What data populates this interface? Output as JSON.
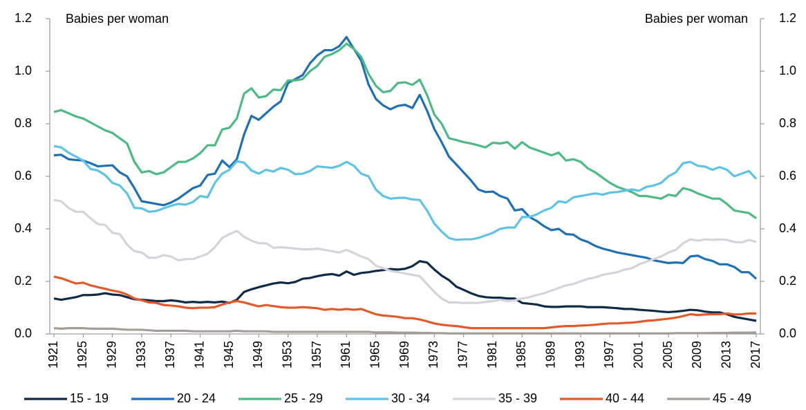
{
  "chart_data": {
    "type": "line",
    "y_label": "Babies per woman",
    "y2_label": "Babies per woman",
    "x": [
      1921,
      1922,
      1923,
      1924,
      1925,
      1926,
      1927,
      1928,
      1929,
      1930,
      1931,
      1932,
      1933,
      1934,
      1935,
      1936,
      1937,
      1938,
      1939,
      1940,
      1941,
      1942,
      1943,
      1944,
      1945,
      1946,
      1947,
      1948,
      1949,
      1950,
      1951,
      1952,
      1953,
      1954,
      1955,
      1956,
      1957,
      1958,
      1959,
      1960,
      1961,
      1962,
      1963,
      1964,
      1965,
      1966,
      1967,
      1968,
      1969,
      1970,
      1971,
      1972,
      1973,
      1974,
      1975,
      1976,
      1977,
      1978,
      1979,
      1980,
      1981,
      1982,
      1983,
      1984,
      1985,
      1986,
      1987,
      1988,
      1989,
      1990,
      1991,
      1992,
      1993,
      1994,
      1995,
      1996,
      1997,
      1998,
      1999,
      2000,
      2001,
      2002,
      2003,
      2004,
      2005,
      2006,
      2007,
      2008,
      2009,
      2010,
      2011,
      2012,
      2013,
      2014,
      2015,
      2016,
      2017
    ],
    "xlim": [
      1921,
      2017
    ],
    "xticks": [
      1921,
      1925,
      1929,
      1933,
      1937,
      1941,
      1945,
      1949,
      1953,
      1957,
      1961,
      1965,
      1969,
      1973,
      1977,
      1981,
      1985,
      1989,
      1993,
      1997,
      2001,
      2005,
      2009,
      2013,
      2017
    ],
    "ylim": [
      0,
      1.2
    ],
    "yticks": [
      {
        "value": 0,
        "label": "0.0"
      },
      0.2,
      0.4,
      0.6,
      0.8,
      {
        "value": 1,
        "label": "1.0"
      },
      1.2
    ],
    "y2lim": [
      0,
      1.2
    ],
    "y2ticks": [
      {
        "value": 0,
        "label": "0.0"
      },
      0.2,
      0.4,
      0.6,
      0.8,
      {
        "value": 1,
        "label": "1.0"
      },
      1.2
    ],
    "legend": "bottom",
    "series": [
      {
        "name": "15 - 19",
        "color": "#0e2a47",
        "values": [
          0.135,
          0.13,
          0.135,
          0.14,
          0.148,
          0.148,
          0.15,
          0.155,
          0.15,
          0.148,
          0.14,
          0.132,
          0.13,
          0.128,
          0.125,
          0.125,
          0.128,
          0.125,
          0.12,
          0.122,
          0.12,
          0.122,
          0.12,
          0.123,
          0.118,
          0.13,
          0.16,
          0.17,
          0.178,
          0.185,
          0.192,
          0.196,
          0.193,
          0.198,
          0.21,
          0.213,
          0.22,
          0.225,
          0.228,
          0.222,
          0.238,
          0.225,
          0.232,
          0.235,
          0.24,
          0.243,
          0.247,
          0.245,
          0.248,
          0.258,
          0.277,
          0.272,
          0.245,
          0.222,
          0.205,
          0.18,
          0.168,
          0.155,
          0.145,
          0.14,
          0.138,
          0.138,
          0.135,
          0.135,
          0.118,
          0.115,
          0.112,
          0.105,
          0.103,
          0.103,
          0.105,
          0.105,
          0.105,
          0.102,
          0.102,
          0.102,
          0.1,
          0.098,
          0.095,
          0.095,
          0.092,
          0.09,
          0.088,
          0.085,
          0.083,
          0.085,
          0.088,
          0.092,
          0.09,
          0.085,
          0.082,
          0.082,
          0.075,
          0.065,
          0.06,
          0.055,
          0.05
        ]
      },
      {
        "name": "20 - 24",
        "color": "#1f6fb4",
        "values": [
          0.68,
          0.682,
          0.665,
          0.662,
          0.66,
          0.65,
          0.638,
          0.64,
          0.642,
          0.615,
          0.6,
          0.555,
          0.505,
          0.5,
          0.495,
          0.49,
          0.5,
          0.515,
          0.535,
          0.555,
          0.565,
          0.605,
          0.61,
          0.66,
          0.635,
          0.665,
          0.76,
          0.83,
          0.815,
          0.84,
          0.865,
          0.885,
          0.955,
          0.97,
          0.985,
          1.03,
          1.06,
          1.08,
          1.08,
          1.095,
          1.13,
          1.085,
          1.04,
          0.95,
          0.895,
          0.87,
          0.855,
          0.868,
          0.872,
          0.86,
          0.91,
          0.85,
          0.78,
          0.73,
          0.675,
          0.645,
          0.615,
          0.585,
          0.55,
          0.54,
          0.542,
          0.525,
          0.515,
          0.47,
          0.475,
          0.445,
          0.43,
          0.41,
          0.395,
          0.4,
          0.38,
          0.378,
          0.36,
          0.35,
          0.335,
          0.325,
          0.318,
          0.31,
          0.305,
          0.3,
          0.295,
          0.29,
          0.28,
          0.275,
          0.27,
          0.272,
          0.27,
          0.295,
          0.298,
          0.285,
          0.278,
          0.265,
          0.265,
          0.255,
          0.235,
          0.235,
          0.21
        ]
      },
      {
        "name": "25 - 29",
        "color": "#4dba85",
        "values": [
          0.845,
          0.852,
          0.84,
          0.828,
          0.82,
          0.805,
          0.79,
          0.775,
          0.765,
          0.745,
          0.725,
          0.655,
          0.615,
          0.62,
          0.608,
          0.615,
          0.635,
          0.655,
          0.655,
          0.668,
          0.688,
          0.718,
          0.718,
          0.778,
          0.785,
          0.82,
          0.915,
          0.935,
          0.9,
          0.905,
          0.93,
          0.928,
          0.965,
          0.965,
          0.97,
          1.0,
          1.02,
          1.055,
          1.065,
          1.08,
          1.105,
          1.085,
          1.055,
          0.99,
          0.945,
          0.92,
          0.925,
          0.955,
          0.958,
          0.948,
          0.968,
          0.91,
          0.835,
          0.8,
          0.745,
          0.738,
          0.73,
          0.725,
          0.718,
          0.71,
          0.728,
          0.725,
          0.73,
          0.705,
          0.73,
          0.71,
          0.7,
          0.69,
          0.68,
          0.69,
          0.66,
          0.665,
          0.655,
          0.63,
          0.615,
          0.595,
          0.575,
          0.56,
          0.55,
          0.54,
          0.525,
          0.525,
          0.52,
          0.515,
          0.53,
          0.525,
          0.555,
          0.548,
          0.535,
          0.525,
          0.515,
          0.515,
          0.495,
          0.47,
          0.465,
          0.46,
          0.44
        ]
      },
      {
        "name": "30 - 34",
        "color": "#5ec3e2",
        "values": [
          0.715,
          0.71,
          0.69,
          0.675,
          0.66,
          0.628,
          0.622,
          0.605,
          0.575,
          0.565,
          0.535,
          0.48,
          0.478,
          0.465,
          0.468,
          0.478,
          0.488,
          0.495,
          0.492,
          0.502,
          0.525,
          0.52,
          0.575,
          0.61,
          0.625,
          0.657,
          0.652,
          0.622,
          0.61,
          0.625,
          0.618,
          0.632,
          0.625,
          0.608,
          0.61,
          0.62,
          0.638,
          0.635,
          0.632,
          0.64,
          0.655,
          0.64,
          0.61,
          0.6,
          0.55,
          0.525,
          0.515,
          0.518,
          0.518,
          0.512,
          0.51,
          0.47,
          0.42,
          0.39,
          0.365,
          0.358,
          0.36,
          0.36,
          0.365,
          0.375,
          0.385,
          0.4,
          0.405,
          0.405,
          0.445,
          0.445,
          0.455,
          0.47,
          0.48,
          0.505,
          0.5,
          0.52,
          0.525,
          0.53,
          0.535,
          0.53,
          0.538,
          0.54,
          0.545,
          0.55,
          0.545,
          0.56,
          0.565,
          0.575,
          0.6,
          0.615,
          0.65,
          0.655,
          0.64,
          0.637,
          0.625,
          0.635,
          0.625,
          0.6,
          0.61,
          0.62,
          0.59
        ]
      },
      {
        "name": "35 - 39",
        "color": "#d4d3dc",
        "values": [
          0.51,
          0.505,
          0.48,
          0.465,
          0.465,
          0.44,
          0.418,
          0.415,
          0.385,
          0.38,
          0.34,
          0.315,
          0.31,
          0.29,
          0.29,
          0.3,
          0.295,
          0.28,
          0.285,
          0.285,
          0.295,
          0.305,
          0.33,
          0.365,
          0.38,
          0.392,
          0.37,
          0.355,
          0.345,
          0.345,
          0.328,
          0.33,
          0.328,
          0.325,
          0.322,
          0.322,
          0.325,
          0.32,
          0.315,
          0.31,
          0.32,
          0.308,
          0.295,
          0.285,
          0.26,
          0.25,
          0.24,
          0.235,
          0.23,
          0.225,
          0.22,
          0.19,
          0.16,
          0.135,
          0.12,
          0.12,
          0.118,
          0.118,
          0.118,
          0.122,
          0.125,
          0.13,
          0.125,
          0.128,
          0.135,
          0.14,
          0.148,
          0.155,
          0.165,
          0.175,
          0.185,
          0.19,
          0.2,
          0.21,
          0.215,
          0.225,
          0.23,
          0.235,
          0.245,
          0.25,
          0.265,
          0.275,
          0.285,
          0.295,
          0.31,
          0.32,
          0.345,
          0.36,
          0.355,
          0.36,
          0.358,
          0.36,
          0.358,
          0.35,
          0.348,
          0.358,
          0.35
        ]
      },
      {
        "name": "40 - 44",
        "color": "#e05a2b",
        "values": [
          0.218,
          0.212,
          0.202,
          0.192,
          0.195,
          0.185,
          0.178,
          0.172,
          0.165,
          0.16,
          0.15,
          0.135,
          0.128,
          0.12,
          0.118,
          0.11,
          0.108,
          0.105,
          0.1,
          0.098,
          0.1,
          0.1,
          0.102,
          0.112,
          0.12,
          0.125,
          0.12,
          0.112,
          0.105,
          0.11,
          0.106,
          0.102,
          0.1,
          0.1,
          0.102,
          0.1,
          0.098,
          0.092,
          0.095,
          0.092,
          0.095,
          0.092,
          0.095,
          0.085,
          0.075,
          0.07,
          0.068,
          0.065,
          0.06,
          0.06,
          0.055,
          0.048,
          0.04,
          0.035,
          0.032,
          0.03,
          0.026,
          0.022,
          0.022,
          0.022,
          0.022,
          0.022,
          0.022,
          0.022,
          0.022,
          0.022,
          0.022,
          0.022,
          0.025,
          0.028,
          0.03,
          0.03,
          0.032,
          0.033,
          0.035,
          0.038,
          0.04,
          0.04,
          0.042,
          0.043,
          0.046,
          0.05,
          0.052,
          0.055,
          0.058,
          0.062,
          0.068,
          0.075,
          0.072,
          0.074,
          0.075,
          0.075,
          0.078,
          0.074,
          0.075,
          0.078,
          0.078
        ]
      },
      {
        "name": "45 - 49",
        "color": "#a69d94",
        "values": [
          0.022,
          0.02,
          0.022,
          0.022,
          0.022,
          0.02,
          0.02,
          0.02,
          0.02,
          0.018,
          0.016,
          0.016,
          0.016,
          0.014,
          0.012,
          0.012,
          0.012,
          0.012,
          0.012,
          0.01,
          0.01,
          0.01,
          0.01,
          0.01,
          0.01,
          0.012,
          0.01,
          0.01,
          0.01,
          0.01,
          0.008,
          0.008,
          0.008,
          0.008,
          0.008,
          0.008,
          0.008,
          0.008,
          0.008,
          0.008,
          0.008,
          0.008,
          0.008,
          0.008,
          0.006,
          0.006,
          0.006,
          0.005,
          0.005,
          0.005,
          0.004,
          0.004,
          0.003,
          0.003,
          0.002,
          0.002,
          0.002,
          0.002,
          0.002,
          0.002,
          0.002,
          0.002,
          0.002,
          0.002,
          0.002,
          0.002,
          0.002,
          0.002,
          0.002,
          0.002,
          0.002,
          0.002,
          0.002,
          0.002,
          0.002,
          0.002,
          0.002,
          0.002,
          0.002,
          0.002,
          0.002,
          0.002,
          0.002,
          0.002,
          0.002,
          0.003,
          0.003,
          0.003,
          0.003,
          0.003,
          0.004,
          0.004,
          0.004,
          0.005,
          0.005,
          0.005,
          0.006
        ]
      }
    ]
  }
}
